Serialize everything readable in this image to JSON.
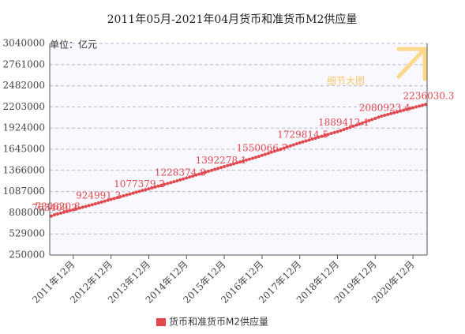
{
  "chart_data": {
    "type": "line",
    "title": "2011年05月-2021年04月货币和准货币M2供应量",
    "unit_label": "单位：亿元",
    "annotation": "细节大图",
    "categories": [
      null,
      null,
      null,
      null,
      null,
      null,
      null,
      "2011年12月",
      null,
      null,
      null,
      null,
      null,
      null,
      null,
      null,
      null,
      null,
      null,
      "2012年12月",
      null,
      null,
      null,
      null,
      null,
      null,
      null,
      null,
      null,
      null,
      null,
      "2013年12月",
      null,
      null,
      null,
      null,
      null,
      null,
      null,
      null,
      null,
      null,
      null,
      "2014年12月",
      null,
      null,
      null,
      null,
      null,
      null,
      null,
      null,
      null,
      null,
      null,
      "2015年12月",
      null,
      null,
      null,
      null,
      null,
      null,
      null,
      null,
      null,
      null,
      null,
      "2016年12月",
      null,
      null,
      null,
      null,
      null,
      null,
      null,
      null,
      null,
      null,
      null,
      "2017年12月",
      null,
      null,
      null,
      null,
      null,
      null,
      null,
      null,
      null,
      null,
      null,
      "2018年12月",
      null,
      null,
      null,
      null,
      null,
      null,
      null,
      null,
      null,
      null,
      null,
      "2019年12月",
      null,
      null,
      null,
      null,
      null,
      null,
      null,
      null,
      null,
      null,
      null,
      "2020年12月",
      null,
      null,
      null,
      null
    ],
    "series": [
      {
        "name": "货币和准货币M2供应量",
        "color": "#e0484e",
        "values": [
          763409.2,
          780820.8,
          791900,
          803000,
          814100,
          825200,
          836300,
          847400,
          858500,
          869600,
          880700,
          891800,
          902900,
          914000,
          924991.2,
          936700,
          948400,
          960100,
          971900,
          983600,
          995300,
          1007000,
          1018800,
          1030500,
          1042200,
          1053900,
          1065700,
          1077379.2,
          1089000,
          1100600,
          1112200,
          1123800,
          1135500,
          1147100,
          1158700,
          1170300,
          1181900,
          1193500,
          1205200,
          1216800,
          1228374.8,
          1241000,
          1253600,
          1266200,
          1278800,
          1291400,
          1304000,
          1316600,
          1329200,
          1341800,
          1354400,
          1367100,
          1379700,
          1392278.1,
          1404400,
          1416600,
          1428700,
          1440800,
          1453000,
          1465100,
          1477300,
          1489400,
          1501500,
          1513700,
          1525800,
          1538000,
          1550066.7,
          1563900,
          1577700,
          1591500,
          1605400,
          1619200,
          1633000,
          1646800,
          1660700,
          1674500,
          1688300,
          1702200,
          1716000,
          1729814.5,
          1742100,
          1754400,
          1766600,
          1778900,
          1791200,
          1803500,
          1815700,
          1828000,
          1840300,
          1852600,
          1864800,
          1877100,
          1889412.1,
          1904100,
          1918900,
          1933600,
          1948300,
          1963100,
          1977800,
          1992500,
          2007300,
          2022000,
          2036700,
          2051500,
          2066200,
          2080923.4,
          2092000,
          2103100,
          2114200,
          2125300,
          2136400,
          2147500,
          2158500,
          2169600,
          2180700,
          2191800,
          2202900,
          2214000,
          2225000,
          2236030.3
        ],
        "value_labels": [
          "763409.2",
          "780820.8",
          null,
          null,
          null,
          null,
          null,
          null,
          null,
          null,
          null,
          null,
          null,
          null,
          "924991.2",
          null,
          null,
          null,
          null,
          null,
          null,
          null,
          null,
          null,
          null,
          null,
          null,
          "1077379.2",
          null,
          null,
          null,
          null,
          null,
          null,
          null,
          null,
          null,
          null,
          null,
          null,
          "1228374.8",
          null,
          null,
          null,
          null,
          null,
          null,
          null,
          null,
          null,
          null,
          null,
          null,
          "1392278.1",
          null,
          null,
          null,
          null,
          null,
          null,
          null,
          null,
          null,
          null,
          null,
          null,
          "1550066.7",
          null,
          null,
          null,
          null,
          null,
          null,
          null,
          null,
          null,
          null,
          null,
          null,
          "1729814.5",
          null,
          null,
          null,
          null,
          null,
          null,
          null,
          null,
          null,
          null,
          null,
          null,
          "1889412.1",
          null,
          null,
          null,
          null,
          null,
          null,
          null,
          null,
          null,
          null,
          null,
          null,
          "2080923.4",
          null,
          null,
          null,
          null,
          null,
          null,
          null,
          null,
          null,
          null,
          null,
          null,
          null,
          "2236030.3"
        ]
      }
    ],
    "ylim": [
      250000,
      3040000
    ],
    "yticks": [
      250000,
      529000,
      808000,
      1087000,
      1366000,
      1645000,
      1924000,
      2203000,
      2482000,
      2761000,
      3040000
    ],
    "grid": true,
    "legend": "bottom"
  }
}
